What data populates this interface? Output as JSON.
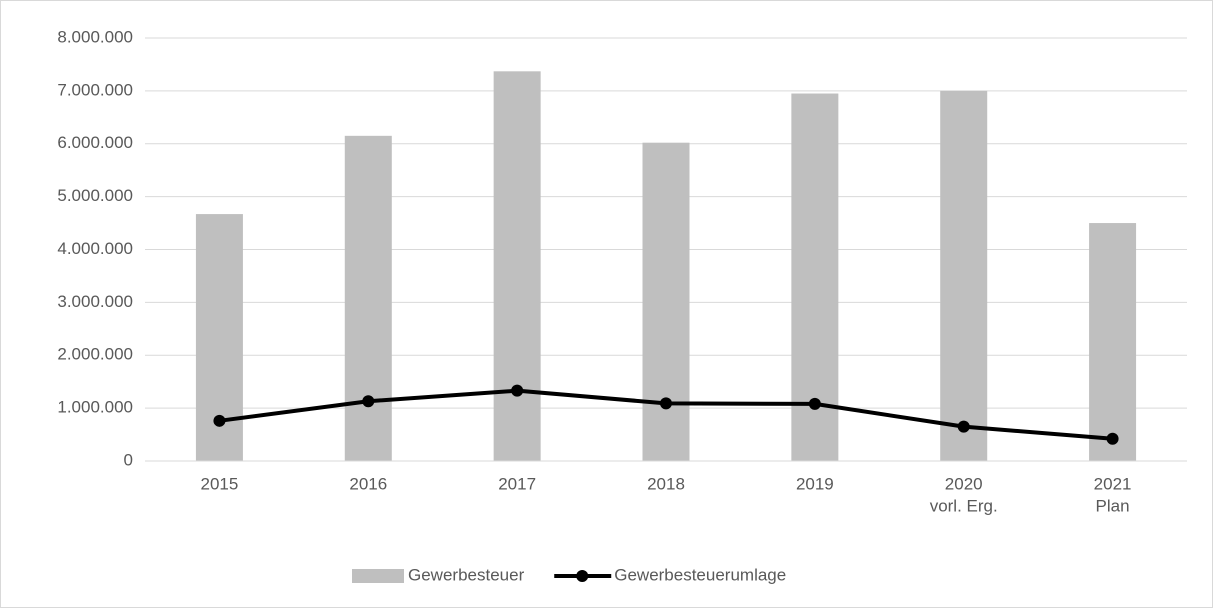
{
  "chart_data": {
    "type": "bar",
    "categories": [
      [
        "2015"
      ],
      [
        "2016"
      ],
      [
        "2017"
      ],
      [
        "2018"
      ],
      [
        "2019"
      ],
      [
        "2020",
        "vorl. Erg."
      ],
      [
        "2021",
        "Plan"
      ]
    ],
    "series": [
      {
        "name": "Gewerbesteuer",
        "type": "bar",
        "color": "#bfbfbf",
        "values": [
          4670000,
          6150000,
          7370000,
          6020000,
          6950000,
          7000000,
          4500000
        ]
      },
      {
        "name": "Gewerbesteuerumlage",
        "type": "line",
        "color": "#000000",
        "values": [
          760000,
          1130000,
          1330000,
          1090000,
          1080000,
          650000,
          420000
        ]
      }
    ],
    "ylim": [
      0,
      8000000
    ],
    "yticks": [
      0,
      {
        "value": 1000000,
        "label": "1.000.000"
      },
      {
        "value": 2000000,
        "label": "2.000.000"
      },
      {
        "value": 3000000,
        "label": "3.000.000"
      },
      {
        "value": 4000000,
        "label": "4.000.000"
      },
      {
        "value": 5000000,
        "label": "5.000.000"
      },
      {
        "value": 6000000,
        "label": "6.000.000"
      },
      {
        "value": 7000000,
        "label": "7.000.000"
      },
      {
        "value": 8000000,
        "label": "8.000.000"
      }
    ],
    "grid": true,
    "legend": "bottom"
  }
}
